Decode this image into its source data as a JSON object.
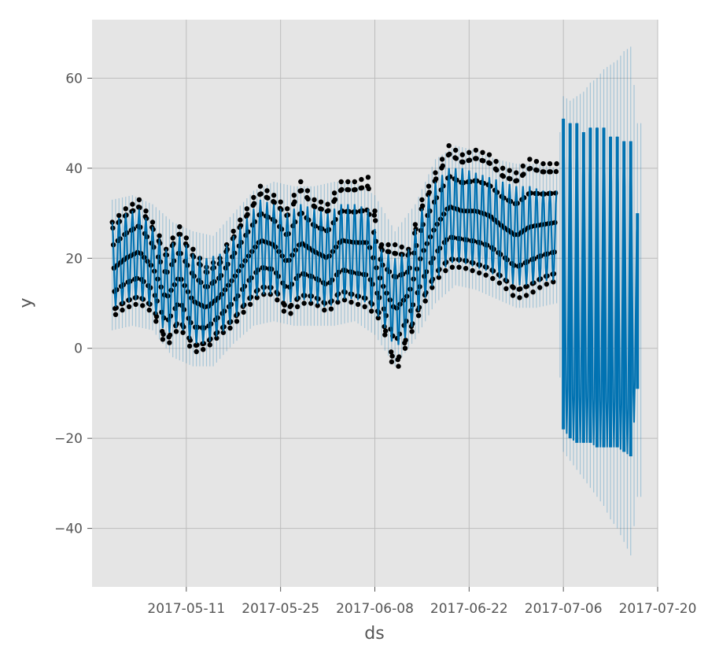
{
  "chart_data": {
    "type": "line",
    "title": "",
    "xlabel": "ds",
    "ylabel": "y",
    "xlim": [
      "2017-04-27",
      "2017-07-20"
    ],
    "ylim": [
      -53,
      73
    ],
    "grid": true,
    "yticks": [
      -40,
      -20,
      0,
      20,
      40,
      60
    ],
    "ytick_labels": [
      "−40",
      "−20",
      "0",
      "20",
      "40",
      "60"
    ],
    "xticks": [
      "2017-05-11",
      "2017-05-25",
      "2017-06-08",
      "2017-06-22",
      "2017-07-06",
      "2017-07-20"
    ],
    "xtick_labels": [
      "2017-05-11",
      "2017-05-25",
      "2017-06-08",
      "2017-06-22",
      "2017-07-06",
      "2017-07-20"
    ],
    "history_start": "2017-04-30",
    "history_end": "2017-07-05",
    "forecast_end": "2017-07-17",
    "series": [
      {
        "role": "observed",
        "points": [
          {
            "x": "2017-04-30",
            "ymin": 7,
            "ymax": 28
          },
          {
            "x": "2017-05-02",
            "ymin": 9,
            "ymax": 31
          },
          {
            "x": "2017-05-04",
            "ymin": 10,
            "ymax": 33
          },
          {
            "x": "2017-05-06",
            "ymin": 8,
            "ymax": 28
          },
          {
            "x": "2017-05-08",
            "ymin": 0,
            "ymax": 22
          },
          {
            "x": "2017-05-10",
            "ymin": 5,
            "ymax": 27
          },
          {
            "x": "2017-05-12",
            "ymin": -1,
            "ymax": 22
          },
          {
            "x": "2017-05-14",
            "ymin": 0,
            "ymax": 18
          },
          {
            "x": "2017-05-16",
            "ymin": 3,
            "ymax": 20
          },
          {
            "x": "2017-05-18",
            "ymin": 5,
            "ymax": 26
          },
          {
            "x": "2017-05-20",
            "ymin": 9,
            "ymax": 31
          },
          {
            "x": "2017-05-22",
            "ymin": 12,
            "ymax": 36
          },
          {
            "x": "2017-05-24",
            "ymin": 12,
            "ymax": 34
          },
          {
            "x": "2017-05-26",
            "ymin": 7,
            "ymax": 31
          },
          {
            "x": "2017-05-28",
            "ymin": 10,
            "ymax": 37
          },
          {
            "x": "2017-05-30",
            "ymin": 10,
            "ymax": 33
          },
          {
            "x": "2017-06-01",
            "ymin": 8,
            "ymax": 32
          },
          {
            "x": "2017-06-03",
            "ymin": 11,
            "ymax": 37
          },
          {
            "x": "2017-06-05",
            "ymin": 10,
            "ymax": 37
          },
          {
            "x": "2017-06-07",
            "ymin": 9,
            "ymax": 38
          },
          {
            "x": "2017-06-09",
            "ymin": 6,
            "ymax": 23
          },
          {
            "x": "2017-06-11",
            "ymin": -6,
            "ymax": 23
          },
          {
            "x": "2017-06-13",
            "ymin": 2,
            "ymax": 22
          },
          {
            "x": "2017-06-15",
            "ymin": 9,
            "ymax": 33
          },
          {
            "x": "2017-06-17",
            "ymin": 15,
            "ymax": 39
          },
          {
            "x": "2017-06-19",
            "ymin": 18,
            "ymax": 45
          },
          {
            "x": "2017-06-21",
            "ymin": 18,
            "ymax": 43
          },
          {
            "x": "2017-06-23",
            "ymin": 17,
            "ymax": 44
          },
          {
            "x": "2017-06-25",
            "ymin": 16,
            "ymax": 43
          },
          {
            "x": "2017-06-27",
            "ymin": 14,
            "ymax": 40
          },
          {
            "x": "2017-06-29",
            "ymin": 11,
            "ymax": 39
          },
          {
            "x": "2017-07-01",
            "ymin": 12,
            "ymax": 42
          },
          {
            "x": "2017-07-03",
            "ymin": 14,
            "ymax": 41
          },
          {
            "x": "2017-07-05",
            "ymin": 15,
            "ymax": 41
          }
        ]
      },
      {
        "role": "forecast",
        "points": [
          {
            "x": "2017-04-30",
            "ymin": 9,
            "ymax": 28
          },
          {
            "x": "2017-05-02",
            "ymin": 10,
            "ymax": 30
          },
          {
            "x": "2017-05-04",
            "ymin": 11,
            "ymax": 31
          },
          {
            "x": "2017-05-06",
            "ymin": 9,
            "ymax": 27
          },
          {
            "x": "2017-05-08",
            "ymin": 3,
            "ymax": 22
          },
          {
            "x": "2017-05-10",
            "ymin": 5,
            "ymax": 25
          },
          {
            "x": "2017-05-12",
            "ymin": 1,
            "ymax": 21
          },
          {
            "x": "2017-05-14",
            "ymin": 1,
            "ymax": 20
          },
          {
            "x": "2017-05-16",
            "ymin": 3,
            "ymax": 21
          },
          {
            "x": "2017-05-18",
            "ymin": 6,
            "ymax": 25
          },
          {
            "x": "2017-05-20",
            "ymin": 10,
            "ymax": 29
          },
          {
            "x": "2017-05-22",
            "ymin": 12,
            "ymax": 33
          },
          {
            "x": "2017-05-24",
            "ymin": 12,
            "ymax": 32
          },
          {
            "x": "2017-05-26",
            "ymin": 10,
            "ymax": 30
          },
          {
            "x": "2017-05-28",
            "ymin": 11,
            "ymax": 32
          },
          {
            "x": "2017-05-30",
            "ymin": 10,
            "ymax": 31
          },
          {
            "x": "2017-06-01",
            "ymin": 9,
            "ymax": 30
          },
          {
            "x": "2017-06-03",
            "ymin": 11,
            "ymax": 32
          },
          {
            "x": "2017-06-05",
            "ymin": 11,
            "ymax": 32
          },
          {
            "x": "2017-06-07",
            "ymin": 10,
            "ymax": 31
          },
          {
            "x": "2017-06-09",
            "ymin": 6,
            "ymax": 22
          },
          {
            "x": "2017-06-11",
            "ymin": 0,
            "ymax": 20
          },
          {
            "x": "2017-06-13",
            "ymin": 3,
            "ymax": 22
          },
          {
            "x": "2017-06-15",
            "ymin": 10,
            "ymax": 31
          },
          {
            "x": "2017-06-17",
            "ymin": 15,
            "ymax": 37
          },
          {
            "x": "2017-06-19",
            "ymin": 19,
            "ymax": 40
          },
          {
            "x": "2017-06-21",
            "ymin": 19,
            "ymax": 40
          },
          {
            "x": "2017-06-23",
            "ymin": 18,
            "ymax": 39
          },
          {
            "x": "2017-06-25",
            "ymin": 17,
            "ymax": 38
          },
          {
            "x": "2017-06-27",
            "ymin": 15,
            "ymax": 37
          },
          {
            "x": "2017-06-29",
            "ymin": 14,
            "ymax": 36
          },
          {
            "x": "2017-07-01",
            "ymin": 14,
            "ymax": 36
          },
          {
            "x": "2017-07-03",
            "ymin": 15,
            "ymax": 35
          },
          {
            "x": "2017-07-05",
            "ymin": 15,
            "ymax": 35
          },
          {
            "x": "2017-07-06",
            "ymin": -18,
            "ymax": 51
          },
          {
            "x": "2017-07-07",
            "ymin": -20,
            "ymax": 50
          },
          {
            "x": "2017-07-08",
            "ymin": -21,
            "ymax": 50
          },
          {
            "x": "2017-07-09",
            "ymin": -21,
            "ymax": 48
          },
          {
            "x": "2017-07-10",
            "ymin": -21,
            "ymax": 49
          },
          {
            "x": "2017-07-11",
            "ymin": -22,
            "ymax": 49
          },
          {
            "x": "2017-07-12",
            "ymin": -22,
            "ymax": 49
          },
          {
            "x": "2017-07-13",
            "ymin": -22,
            "ymax": 47
          },
          {
            "x": "2017-07-14",
            "ymin": -22,
            "ymax": 47
          },
          {
            "x": "2017-07-15",
            "ymin": -23,
            "ymax": 46
          },
          {
            "x": "2017-07-16",
            "ymin": -24,
            "ymax": 46
          },
          {
            "x": "2017-07-17",
            "ymin": -9,
            "ymax": 30
          }
        ]
      },
      {
        "role": "uncertainty",
        "points": [
          {
            "x": "2017-04-30",
            "ymin": 4,
            "ymax": 33
          },
          {
            "x": "2017-05-03",
            "ymin": 5,
            "ymax": 34
          },
          {
            "x": "2017-05-06",
            "ymin": 4,
            "ymax": 32
          },
          {
            "x": "2017-05-09",
            "ymin": -2,
            "ymax": 28
          },
          {
            "x": "2017-05-12",
            "ymin": -4,
            "ymax": 26
          },
          {
            "x": "2017-05-15",
            "ymin": -4,
            "ymax": 25
          },
          {
            "x": "2017-05-18",
            "ymin": 1,
            "ymax": 30
          },
          {
            "x": "2017-05-21",
            "ymin": 5,
            "ymax": 35
          },
          {
            "x": "2017-05-24",
            "ymin": 6,
            "ymax": 37
          },
          {
            "x": "2017-05-27",
            "ymin": 5,
            "ymax": 36
          },
          {
            "x": "2017-05-30",
            "ymin": 5,
            "ymax": 36
          },
          {
            "x": "2017-06-02",
            "ymin": 5,
            "ymax": 37
          },
          {
            "x": "2017-06-05",
            "ymin": 6,
            "ymax": 37
          },
          {
            "x": "2017-06-08",
            "ymin": 3,
            "ymax": 34
          },
          {
            "x": "2017-06-11",
            "ymin": -4,
            "ymax": 26
          },
          {
            "x": "2017-06-14",
            "ymin": 2,
            "ymax": 32
          },
          {
            "x": "2017-06-17",
            "ymin": 10,
            "ymax": 42
          },
          {
            "x": "2017-06-20",
            "ymin": 14,
            "ymax": 45
          },
          {
            "x": "2017-06-23",
            "ymin": 13,
            "ymax": 44
          },
          {
            "x": "2017-06-26",
            "ymin": 11,
            "ymax": 42
          },
          {
            "x": "2017-06-29",
            "ymin": 9,
            "ymax": 41
          },
          {
            "x": "2017-07-02",
            "ymin": 9,
            "ymax": 41
          },
          {
            "x": "2017-07-05",
            "ymin": 10,
            "ymax": 40
          },
          {
            "x": "2017-07-06",
            "ymin": -23,
            "ymax": 56
          },
          {
            "x": "2017-07-07",
            "ymin": -25,
            "ymax": 55
          },
          {
            "x": "2017-07-08",
            "ymin": -27,
            "ymax": 56
          },
          {
            "x": "2017-07-09",
            "ymin": -29,
            "ymax": 57
          },
          {
            "x": "2017-07-10",
            "ymin": -31,
            "ymax": 59
          },
          {
            "x": "2017-07-11",
            "ymin": -33,
            "ymax": 60
          },
          {
            "x": "2017-07-12",
            "ymin": -35,
            "ymax": 62
          },
          {
            "x": "2017-07-13",
            "ymin": -38,
            "ymax": 63
          },
          {
            "x": "2017-07-14",
            "ymin": -40,
            "ymax": 64
          },
          {
            "x": "2017-07-15",
            "ymin": -43,
            "ymax": 66
          },
          {
            "x": "2017-07-16",
            "ymin": -46,
            "ymax": 67
          },
          {
            "x": "2017-07-17",
            "ymin": -33,
            "ymax": 50
          }
        ]
      }
    ],
    "colors": {
      "observed": "#000000",
      "forecast": "#0072B2",
      "uncertainty": "#0072B2",
      "panel": "#E5E5E5",
      "grid": "#BDBDBD",
      "tick_text": "#555555"
    }
  }
}
